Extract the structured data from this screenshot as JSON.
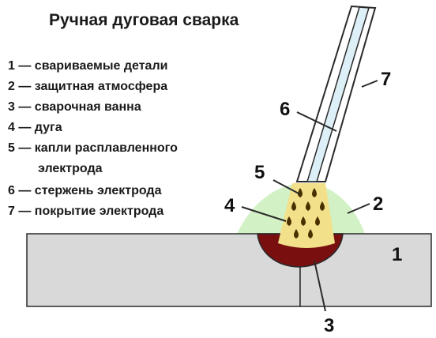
{
  "title": "Ручная дуговая сварка",
  "legend": [
    {
      "line": "1 — свариваемые детали"
    },
    {
      "line": "2 — защитная атмосфера"
    },
    {
      "line": "3 — сварочная ванна"
    },
    {
      "line": "4 — дуга"
    },
    {
      "line": "5 — капли расплавленного"
    },
    {
      "line": "электрода"
    },
    {
      "line": "6 — стержень электрода"
    },
    {
      "line": "7 — покрытие электрода"
    }
  ],
  "callouts": {
    "n1": "1",
    "n2": "2",
    "n3": "3",
    "n4": "4",
    "n5": "5",
    "n6": "6",
    "n7": "7"
  },
  "colors": {
    "workpiece": "#d9d9d9",
    "atmosphere": "#d2f2c6",
    "arc": "#f2e08a",
    "pool": "#7a0f0f",
    "droplet": "#4a3000",
    "electrode_core": "#ddeff7",
    "electrode_coating": "#ffffff",
    "outline": "#2a2a2a"
  }
}
